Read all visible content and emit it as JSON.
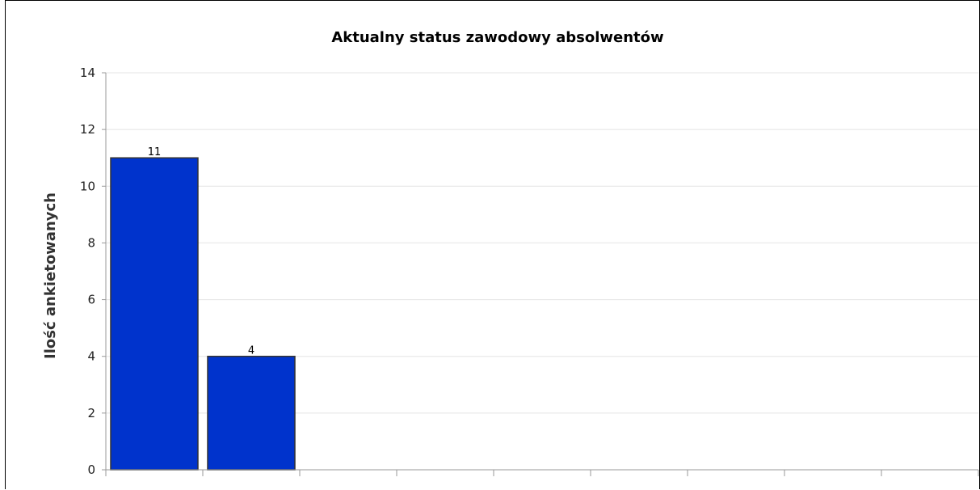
{
  "chart_data": {
    "type": "bar",
    "title": "Aktualny status zawodowy absolwentów",
    "ylabel": "Ilość ankietowanych",
    "xlabel": "",
    "ylim": [
      0,
      14
    ],
    "yticks": [
      0,
      2,
      4,
      6,
      8,
      10,
      12,
      14
    ],
    "slot_count": 9,
    "values": [
      11,
      4
    ],
    "data_labels": [
      "11",
      "4"
    ],
    "grid": true,
    "legend": "none",
    "colors": {
      "bar": "#0033cc",
      "bar_stroke": "#333333",
      "grid": "#e4e4e4",
      "axis": "#999999"
    }
  }
}
